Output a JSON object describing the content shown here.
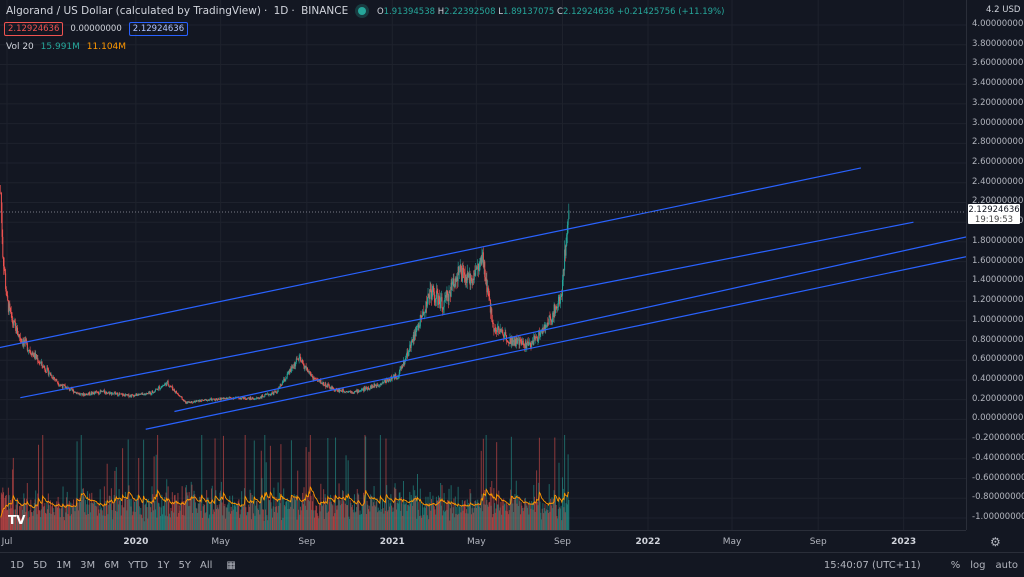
{
  "legend": {
    "title": "Algorand / US Dollar (calculated by TradingView)",
    "interval": "1D",
    "exchange": "BINANCE",
    "open_label": "O",
    "open": "1.91394538",
    "high_label": "H",
    "high": "2.22392508",
    "low_label": "L",
    "low": "1.89137075",
    "close_label": "C",
    "close": "2.12924636",
    "change": "+0.21425756 (+11.19%)"
  },
  "values_row": [
    "2.12924636",
    "0.00000000",
    "2.12924636"
  ],
  "volume": {
    "label": "Vol 20",
    "value1": "15.991M",
    "value2": "11.104M"
  },
  "price_axis": {
    "unit": "USD",
    "top_value": "4.2",
    "ticks": [
      "4.00000000",
      "3.80000000",
      "3.60000000",
      "3.40000000",
      "3.20000000",
      "3.00000000",
      "2.80000000",
      "2.60000000",
      "2.40000000",
      "2.20000000",
      "2.00000000",
      "1.80000000",
      "1.60000000",
      "1.40000000",
      "1.20000000",
      "1.00000000",
      "0.80000000",
      "0.60000000",
      "0.40000000",
      "0.20000000",
      "0.00000000",
      "-0.20000000",
      "-0.40000000",
      "-0.60000000",
      "-0.80000000",
      "-1.00000000"
    ]
  },
  "current_price": {
    "value": "2.12924636",
    "countdown": "19:19:53"
  },
  "time_axis": [
    {
      "label": "Jul",
      "bold": false
    },
    {
      "label": "2020",
      "bold": true
    },
    {
      "label": "May",
      "bold": false
    },
    {
      "label": "Sep",
      "bold": false
    },
    {
      "label": "2021",
      "bold": true
    },
    {
      "label": "May",
      "bold": false
    },
    {
      "label": "Sep",
      "bold": false
    },
    {
      "label": "2022",
      "bold": true
    },
    {
      "label": "May",
      "bold": false
    },
    {
      "label": "Sep",
      "bold": false
    },
    {
      "label": "2023",
      "bold": true
    }
  ],
  "bottom_bar": {
    "ranges": [
      "1D",
      "5D",
      "1M",
      "3M",
      "6M",
      "YTD",
      "1Y",
      "5Y",
      "All"
    ],
    "time": "15:40:07 (UTC+11)",
    "percent": "%",
    "log": "log",
    "auto": "auto"
  },
  "logo": "TV",
  "icons": {
    "calendar": "calendar-icon",
    "settings": "gear-icon"
  },
  "colors": {
    "up": "#26a69a",
    "down": "#ef5350",
    "channel": "#2962ff",
    "volume_ma": "#ff9800"
  },
  "chart_data": {
    "type": "candlestick",
    "title": "Algorand / US Dollar (calculated by TradingView)",
    "y_range": [
      -1.1,
      4.2
    ],
    "x_range": [
      "2019-06-21",
      "2023-03-31"
    ],
    "close_path": [
      {
        "x": "2019-06-22",
        "y": 2.3
      },
      {
        "x": "2019-06-25",
        "y": 1.7
      },
      {
        "x": "2019-07-01",
        "y": 1.2
      },
      {
        "x": "2019-07-08",
        "y": 1.0
      },
      {
        "x": "2019-07-18",
        "y": 0.85
      },
      {
        "x": "2019-08-01",
        "y": 0.72
      },
      {
        "x": "2019-08-20",
        "y": 0.55
      },
      {
        "x": "2019-09-15",
        "y": 0.35
      },
      {
        "x": "2019-10-15",
        "y": 0.25
      },
      {
        "x": "2019-11-15",
        "y": 0.28
      },
      {
        "x": "2019-12-20",
        "y": 0.24
      },
      {
        "x": "2020-01-20",
        "y": 0.26
      },
      {
        "x": "2020-02-15",
        "y": 0.37
      },
      {
        "x": "2020-03-12",
        "y": 0.17
      },
      {
        "x": "2020-04-15",
        "y": 0.2
      },
      {
        "x": "2020-05-20",
        "y": 0.22
      },
      {
        "x": "2020-06-20",
        "y": 0.21
      },
      {
        "x": "2020-07-20",
        "y": 0.28
      },
      {
        "x": "2020-08-20",
        "y": 0.62
      },
      {
        "x": "2020-09-10",
        "y": 0.42
      },
      {
        "x": "2020-10-10",
        "y": 0.3
      },
      {
        "x": "2020-11-10",
        "y": 0.28
      },
      {
        "x": "2020-12-10",
        "y": 0.35
      },
      {
        "x": "2021-01-10",
        "y": 0.45
      },
      {
        "x": "2021-02-10",
        "y": 1.0
      },
      {
        "x": "2021-02-25",
        "y": 1.3
      },
      {
        "x": "2021-03-15",
        "y": 1.15
      },
      {
        "x": "2021-04-05",
        "y": 1.5
      },
      {
        "x": "2021-04-20",
        "y": 1.4
      },
      {
        "x": "2021-05-10",
        "y": 1.6
      },
      {
        "x": "2021-05-25",
        "y": 0.95
      },
      {
        "x": "2021-06-20",
        "y": 0.8
      },
      {
        "x": "2021-07-15",
        "y": 0.75
      },
      {
        "x": "2021-08-10",
        "y": 0.95
      },
      {
        "x": "2021-08-30",
        "y": 1.25
      },
      {
        "x": "2021-09-10",
        "y": 2.13
      }
    ],
    "channels": [
      {
        "x1": "2019-06-01",
        "y1": 0.7,
        "x2": "2022-11-01",
        "y2": 2.55
      },
      {
        "x1": "2019-07-20",
        "y1": 0.22,
        "x2": "2023-01-15",
        "y2": 2.0
      },
      {
        "x1": "2020-02-25",
        "y1": 0.08,
        "x2": "2023-03-31",
        "y2": 1.85
      },
      {
        "x1": "2020-01-15",
        "y1": -0.1,
        "x2": "2023-03-31",
        "y2": 1.65
      }
    ]
  }
}
